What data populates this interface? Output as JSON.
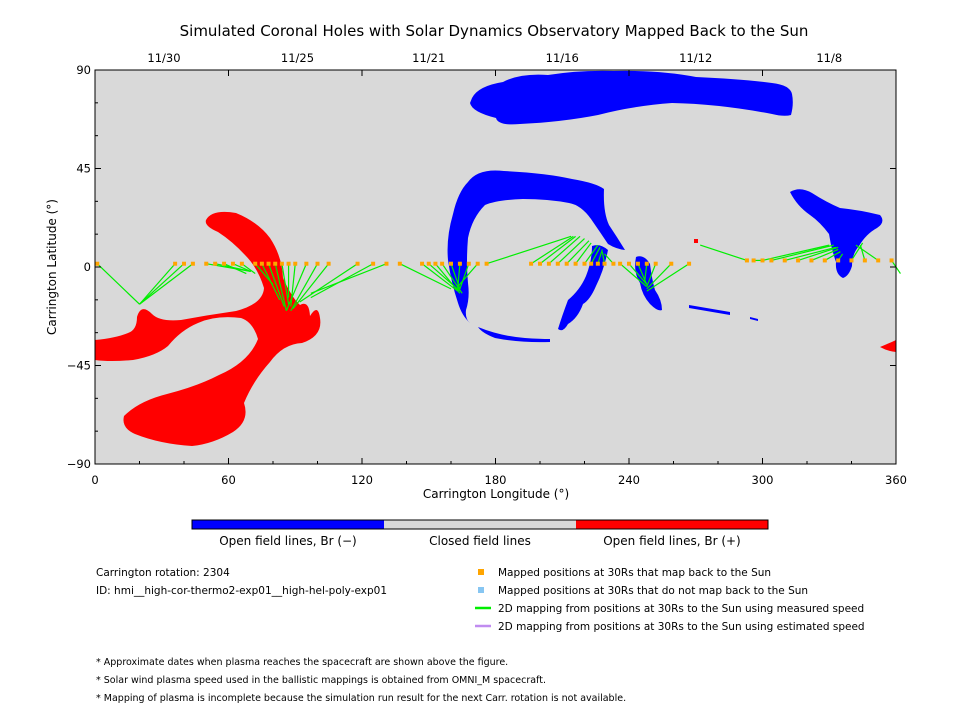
{
  "chart_data": {
    "type": "map",
    "title": "Simulated Coronal Holes with Solar Dynamics Observatory Mapped Back to the Sun",
    "xlabel": "Carrington Longitude (°)",
    "ylabel": "Carrington Latitude (°)",
    "xlim": [
      0,
      360
    ],
    "ylim": [
      -90,
      90
    ],
    "x_ticks": [
      0,
      60,
      120,
      180,
      240,
      300,
      360
    ],
    "y_ticks": [
      90,
      45,
      0,
      -45,
      -90
    ],
    "y_tick_labels": [
      "90",
      "45",
      "0",
      "−45",
      "−90"
    ],
    "top_axis_dates": [
      {
        "label": "11/30",
        "lon": 31
      },
      {
        "label": "11/25",
        "lon": 91
      },
      {
        "label": "11/21",
        "lon": 150
      },
      {
        "label": "11/16",
        "lon": 210
      },
      {
        "label": "11/12",
        "lon": 270
      },
      {
        "label": "11/8",
        "lon": 330
      }
    ],
    "colors": {
      "background": "#d9d9d9",
      "open_negative": "#0000ff",
      "open_positive": "#ff0000",
      "closed": "#d9d9d9",
      "mapped_point": "#ffa500",
      "unmapped_point": "#87c6f2",
      "measured_line": "#00ee00",
      "estimated_line": "#c08cf0"
    },
    "colorbar": [
      {
        "label": "Open field lines, Br (−)",
        "color": "#0000ff"
      },
      {
        "label": "Closed field lines",
        "color": "#d9d9d9"
      },
      {
        "label": "Open field lines, Br (+)",
        "color": "#ff0000"
      }
    ],
    "mappings": [
      {
        "lon": 36,
        "lat": 1.5,
        "to_lon": 20,
        "to_lat": -17
      },
      {
        "lon": 40,
        "lat": 1.5,
        "to_lon": 20,
        "to_lat": -17
      },
      {
        "lon": 44,
        "lat": 1.5,
        "to_lon": 20,
        "to_lat": -17
      },
      {
        "lon": 1,
        "lat": 1.5,
        "to_lon": 20,
        "to_lat": -17
      },
      {
        "lon": 50,
        "lat": 1.5,
        "to_lon": 70,
        "to_lat": -2
      },
      {
        "lon": 54,
        "lat": 1.5,
        "to_lon": 70,
        "to_lat": -2
      },
      {
        "lon": 58,
        "lat": 1.5,
        "to_lon": 68,
        "to_lat": -3
      },
      {
        "lon": 62,
        "lat": 1.5,
        "to_lon": 70,
        "to_lat": -2
      },
      {
        "lon": 66,
        "lat": 1.5,
        "to_lon": 72,
        "to_lat": -3
      },
      {
        "lon": 72,
        "lat": 1.5,
        "to_lon": 80,
        "to_lat": -8
      },
      {
        "lon": 75,
        "lat": 1.5,
        "to_lon": 83,
        "to_lat": -15
      },
      {
        "lon": 78,
        "lat": 1.5,
        "to_lon": 85,
        "to_lat": -18
      },
      {
        "lon": 81,
        "lat": 1.5,
        "to_lon": 86,
        "to_lat": -20
      },
      {
        "lon": 84,
        "lat": 1.5,
        "to_lon": 87,
        "to_lat": -17
      },
      {
        "lon": 87,
        "lat": 1.5,
        "to_lon": 87,
        "to_lat": -14
      },
      {
        "lon": 90,
        "lat": 1.5,
        "to_lon": 88,
        "to_lat": -18
      },
      {
        "lon": 95,
        "lat": 1.5,
        "to_lon": 86,
        "to_lat": -20
      },
      {
        "lon": 100,
        "lat": 1.5,
        "to_lon": 88,
        "to_lat": -20
      },
      {
        "lon": 105,
        "lat": 1.5,
        "to_lon": 89,
        "to_lat": -19
      },
      {
        "lon": 118,
        "lat": 1.5,
        "to_lon": 92,
        "to_lat": -16
      },
      {
        "lon": 125,
        "lat": 1.5,
        "to_lon": 97,
        "to_lat": -14
      },
      {
        "lon": 131,
        "lat": 1.5,
        "to_lon": 97,
        "to_lat": -12
      },
      {
        "lon": 137,
        "lat": 1.5,
        "to_lon": 160,
        "to_lat": -10
      },
      {
        "lon": 147,
        "lat": 1.5,
        "to_lon": 163,
        "to_lat": -11
      },
      {
        "lon": 150,
        "lat": 1.5,
        "to_lon": 164,
        "to_lat": -11
      },
      {
        "lon": 153,
        "lat": 1.5,
        "to_lon": 164,
        "to_lat": -12
      },
      {
        "lon": 156,
        "lat": 1.5,
        "to_lon": 165,
        "to_lat": -12
      },
      {
        "lon": 160,
        "lat": 1.5,
        "to_lon": 164,
        "to_lat": -10
      },
      {
        "lon": 164,
        "lat": 1.5,
        "to_lon": 163,
        "to_lat": -10
      },
      {
        "lon": 168,
        "lat": 1.5,
        "to_lon": 164,
        "to_lat": -10
      },
      {
        "lon": 172,
        "lat": 1.5,
        "to_lon": 163,
        "to_lat": -9
      },
      {
        "lon": 176,
        "lat": 1.5,
        "to_lon": 214,
        "to_lat": 14
      },
      {
        "lon": 196,
        "lat": 1.5,
        "to_lon": 215,
        "to_lat": 14
      },
      {
        "lon": 200,
        "lat": 1.5,
        "to_lon": 216,
        "to_lat": 14
      },
      {
        "lon": 204,
        "lat": 1.5,
        "to_lon": 218,
        "to_lat": 14
      },
      {
        "lon": 208,
        "lat": 1.5,
        "to_lon": 220,
        "to_lat": 13
      },
      {
        "lon": 212,
        "lat": 1.5,
        "to_lon": 222,
        "to_lat": 12
      },
      {
        "lon": 216,
        "lat": 1.5,
        "to_lon": 223,
        "to_lat": 11
      },
      {
        "lon": 220,
        "lat": 1.5,
        "to_lon": 226,
        "to_lat": 10
      },
      {
        "lon": 223,
        "lat": 1.5,
        "to_lon": 227,
        "to_lat": 9
      },
      {
        "lon": 226,
        "lat": 1.5,
        "to_lon": 228,
        "to_lat": 8
      },
      {
        "lon": 229,
        "lat": 1.5,
        "to_lon": 228,
        "to_lat": 7
      },
      {
        "lon": 233,
        "lat": 1.5,
        "to_lon": 229,
        "to_lat": 6
      },
      {
        "lon": 236,
        "lat": 1.5,
        "to_lon": 248,
        "to_lat": -9
      },
      {
        "lon": 240,
        "lat": 1.5,
        "to_lon": 248,
        "to_lat": -8
      },
      {
        "lon": 244,
        "lat": 1.5,
        "to_lon": 248,
        "to_lat": -8
      },
      {
        "lon": 248,
        "lat": 1.5,
        "to_lon": 247,
        "to_lat": -7
      },
      {
        "lon": 252,
        "lat": 1.5,
        "to_lon": 248,
        "to_lat": -9
      },
      {
        "lon": 259,
        "lat": 1.5,
        "to_lon": 248,
        "to_lat": -10
      },
      {
        "lon": 267,
        "lat": 1.5,
        "to_lon": 248,
        "to_lat": -11
      },
      {
        "lon": 293,
        "lat": 3,
        "to_lon": 272,
        "to_lat": 10
      },
      {
        "lon": 296,
        "lat": 3,
        "to_lon": 300,
        "to_lat": 3
      },
      {
        "lon": 300,
        "lat": 3,
        "to_lon": 330,
        "to_lat": 10
      },
      {
        "lon": 304,
        "lat": 3,
        "to_lon": 332,
        "to_lat": 10
      },
      {
        "lon": 310,
        "lat": 3,
        "to_lon": 333,
        "to_lat": 9
      },
      {
        "lon": 316,
        "lat": 3,
        "to_lon": 334,
        "to_lat": 9
      },
      {
        "lon": 322,
        "lat": 3,
        "to_lon": 334,
        "to_lat": 8
      },
      {
        "lon": 328,
        "lat": 3,
        "to_lon": 335,
        "to_lat": 7
      },
      {
        "lon": 334,
        "lat": 3,
        "to_lon": 336,
        "to_lat": 6
      },
      {
        "lon": 340,
        "lat": 3,
        "to_lon": 345,
        "to_lat": 11
      },
      {
        "lon": 346,
        "lat": 3,
        "to_lon": 344,
        "to_lat": 10
      },
      {
        "lon": 352,
        "lat": 3,
        "to_lon": 342,
        "to_lat": 10
      },
      {
        "lon": 358,
        "lat": 3,
        "to_lon": 362,
        "to_lat": -3
      }
    ]
  },
  "info": {
    "rotation_text": "Carrington rotation: 2304",
    "id_text": "ID: hmi__high-cor-thermo2-exp01__high-hel-poly-exp01"
  },
  "legend": [
    {
      "text": "Mapped positions at 30Rs that map back to the Sun",
      "kind": "square",
      "color": "#ffa500"
    },
    {
      "text": "Mapped positions at 30Rs that do not map back to the Sun",
      "kind": "square",
      "color": "#87c6f2"
    },
    {
      "text": "2D mapping from positions at 30Rs to the Sun using measured speed",
      "kind": "line",
      "color": "#00ee00"
    },
    {
      "text": "2D mapping from positions at 30Rs to the Sun using estimated speed",
      "kind": "line",
      "color": "#c08cf0"
    }
  ],
  "notes": [
    "* Approximate dates when plasma reaches the spacecraft are shown above the figure.",
    "* Solar wind plasma speed used in the ballistic mappings is obtained from OMNI_M spacecraft.",
    "* Mapping of plasma is incomplete because the simulation run result for the next Carr. rotation is not available."
  ]
}
